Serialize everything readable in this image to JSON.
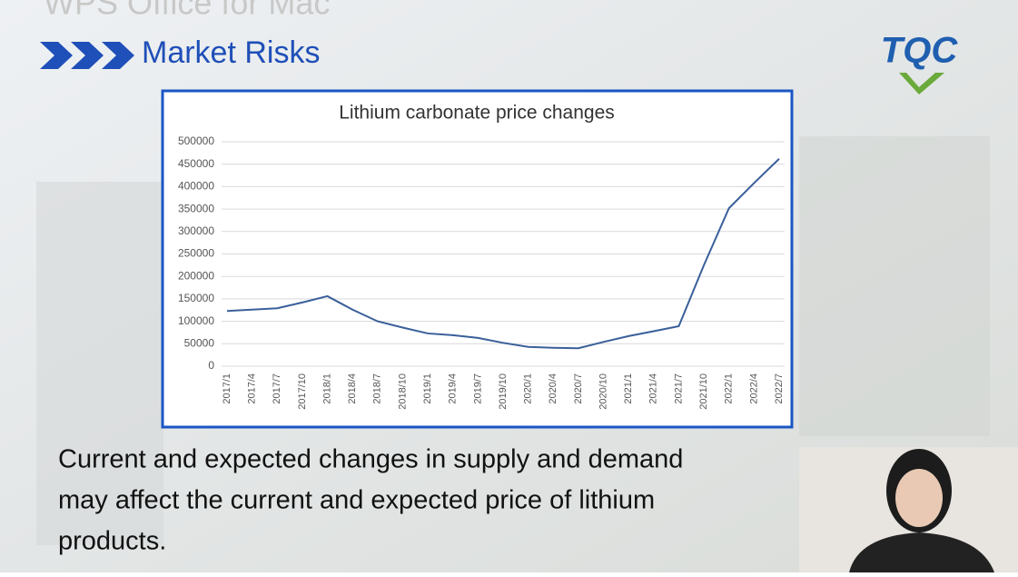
{
  "window_title": "WPS Office for Mac",
  "slide_title": "Market Risks",
  "logo": "TQC",
  "chart_data": {
    "type": "line",
    "title": "Lithium carbonate price changes",
    "categories": [
      "2017/1",
      "2017/4",
      "2017/7",
      "2017/10",
      "2018/1",
      "2018/4",
      "2018/7",
      "2018/10",
      "2019/1",
      "2019/4",
      "2019/7",
      "2019/10",
      "2020/1",
      "2020/4",
      "2020/7",
      "2020/10",
      "2021/1",
      "2021/4",
      "2021/7",
      "2021/10",
      "2022/1",
      "2022/4",
      "2022/7"
    ],
    "series": [
      {
        "name": "Lithium carbonate",
        "color": "#3a5f9a",
        "values": [
          123000,
          126000,
          129000,
          142000,
          156000,
          126000,
          100000,
          86000,
          73000,
          69000,
          63000,
          52000,
          43000,
          41000,
          40000,
          54000,
          67000,
          78000,
          89000,
          225000,
          352000,
          408000,
          462000
        ]
      }
    ],
    "ylim": [
      0,
      500000
    ],
    "yticks": [
      0,
      50000,
      100000,
      150000,
      200000,
      250000,
      300000,
      350000,
      400000,
      450000,
      500000
    ],
    "grid": true
  },
  "body_lines": [
    "Current and expected changes in supply and demand",
    "may affect the current and expected price of lithium",
    "products."
  ]
}
